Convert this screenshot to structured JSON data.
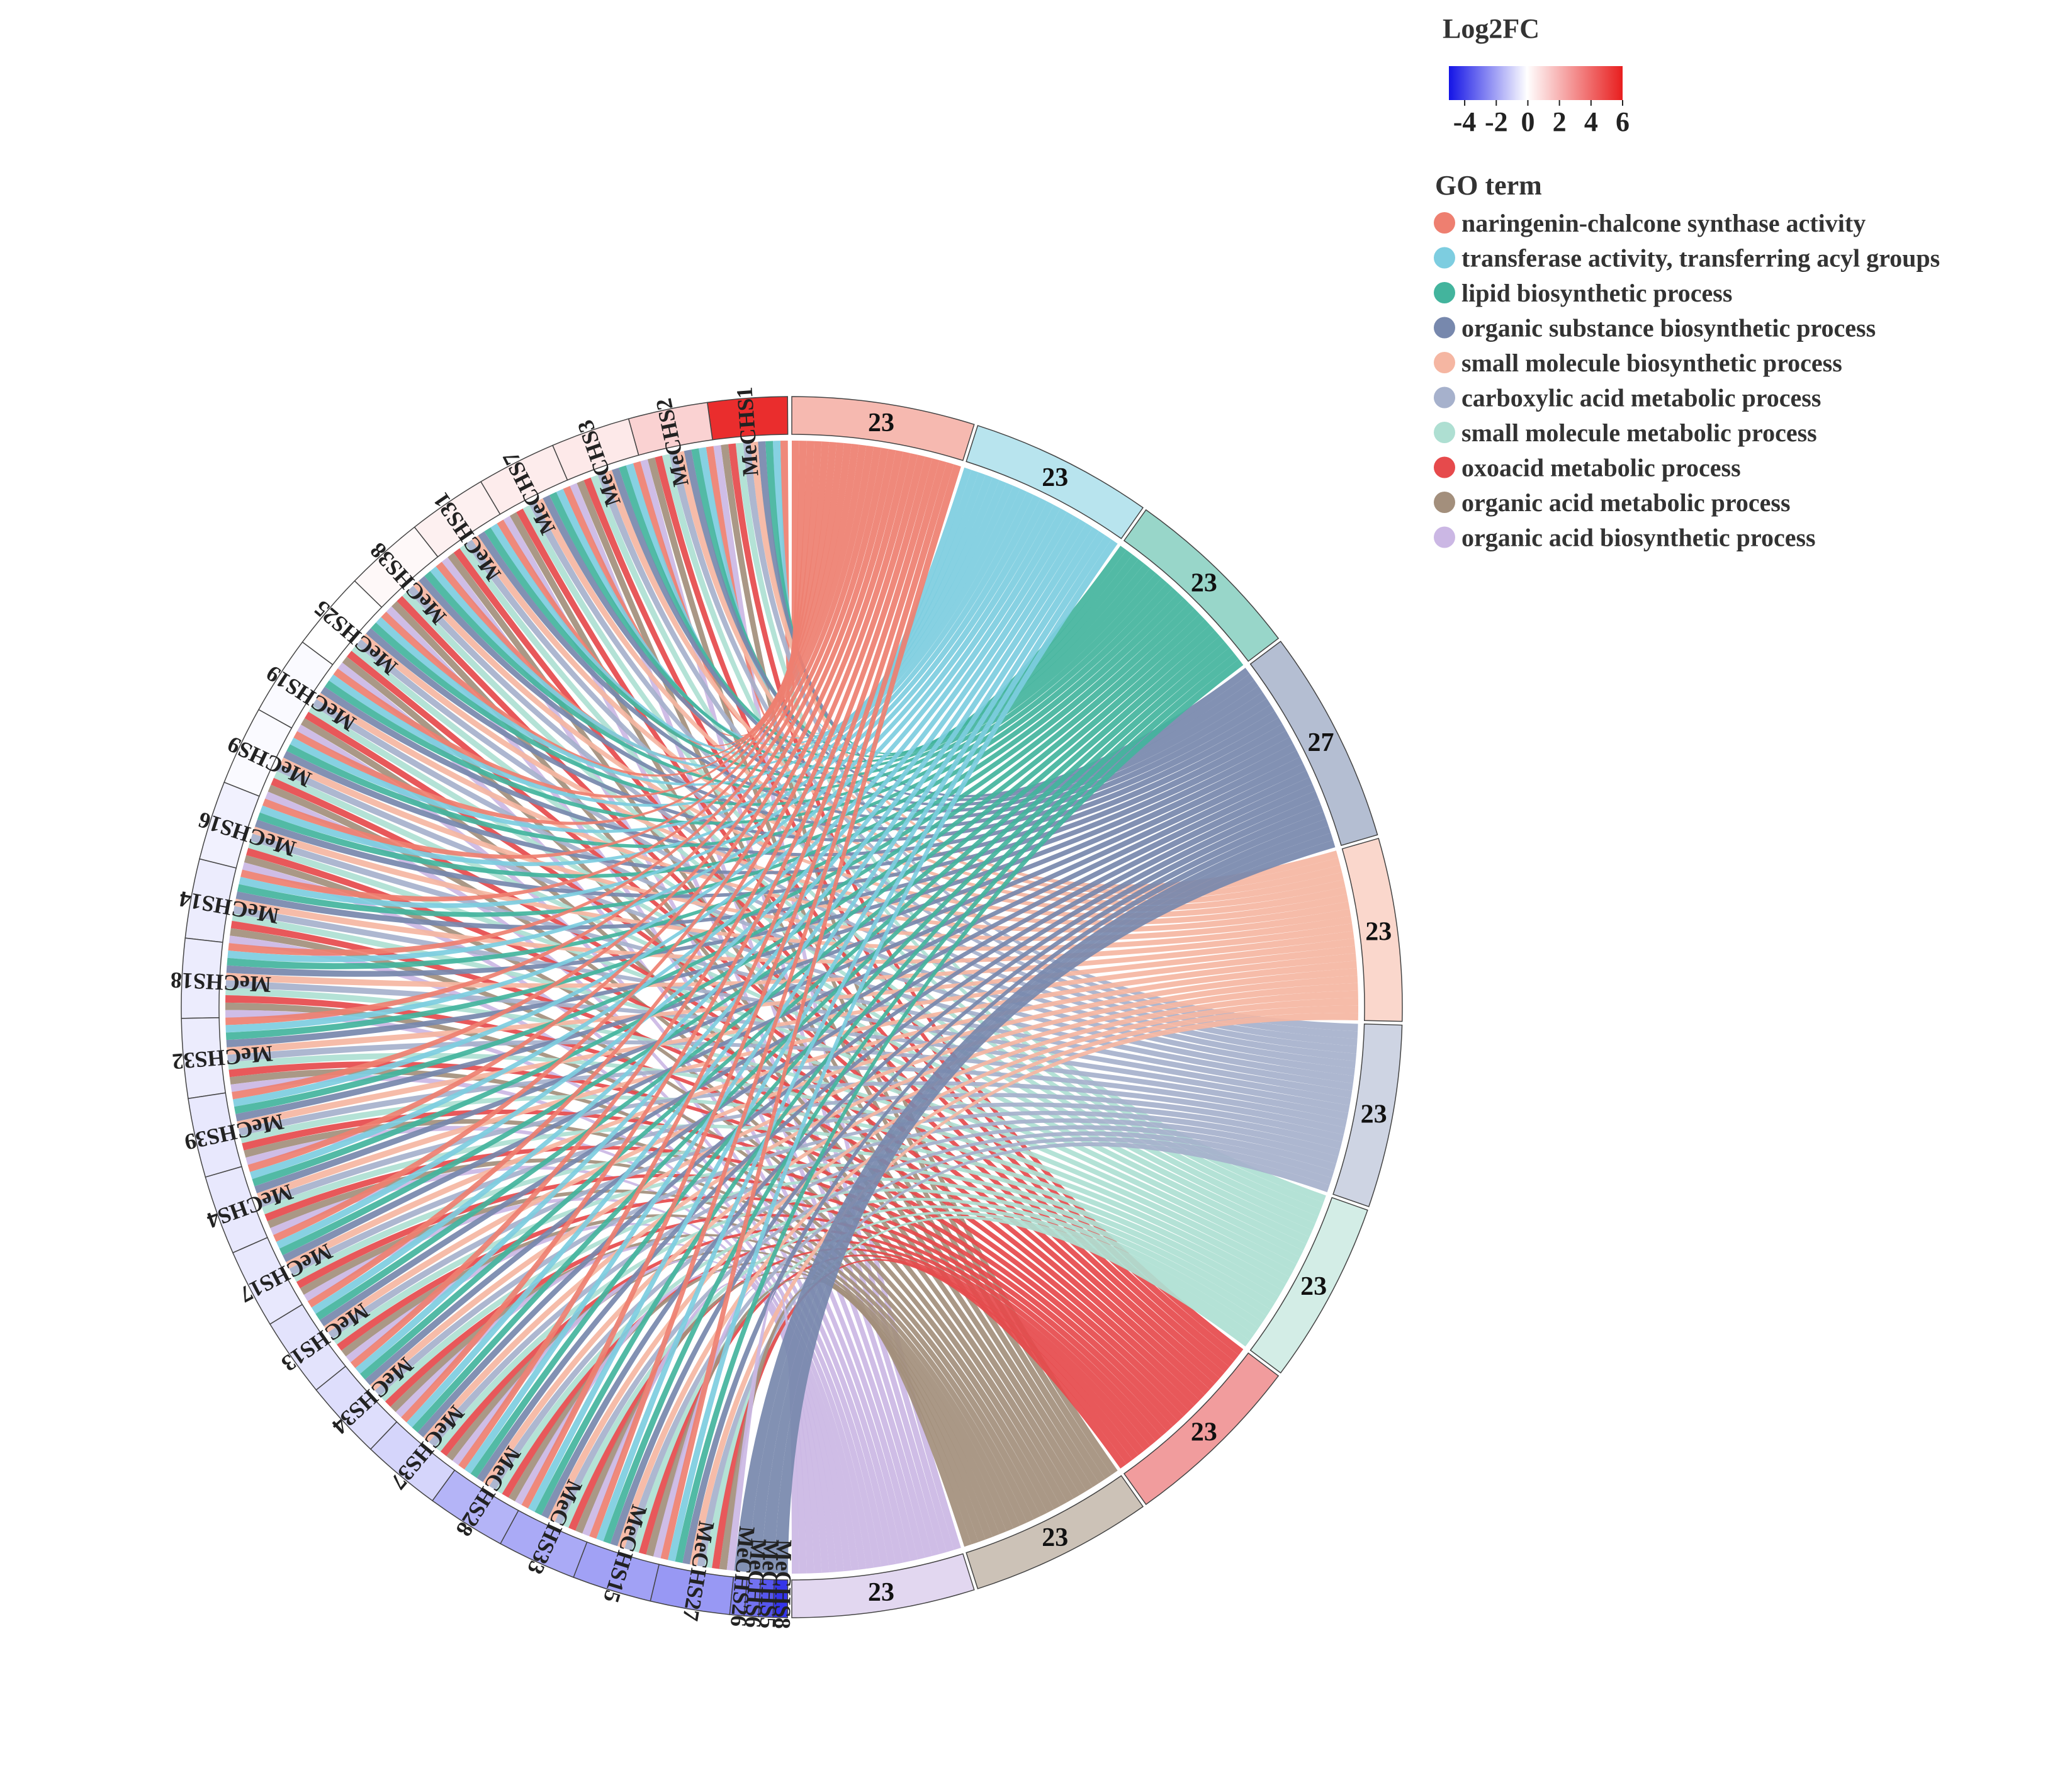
{
  "chart_data": {
    "type": "chord",
    "title": "",
    "genes": [
      {
        "name": "MeCHS1",
        "log2fc": 5.6
      },
      {
        "name": "MeCHS2",
        "log2fc": 1.2
      },
      {
        "name": "MeCHS3",
        "log2fc": 0.6
      },
      {
        "name": "MeCHS7",
        "log2fc": 0.5
      },
      {
        "name": "MeCHS31",
        "log2fc": 0.4
      },
      {
        "name": "MeCHS38",
        "log2fc": 0.2
      },
      {
        "name": "MeCHS25",
        "log2fc": 0.0
      },
      {
        "name": "MeCHS19",
        "log2fc": -0.1
      },
      {
        "name": "MeCHS9",
        "log2fc": -0.1
      },
      {
        "name": "MeCHS16",
        "log2fc": -0.3
      },
      {
        "name": "MeCHS14",
        "log2fc": -0.4
      },
      {
        "name": "MeCHS18",
        "log2fc": -0.4
      },
      {
        "name": "MeCHS32",
        "log2fc": -0.4
      },
      {
        "name": "MeCHS39",
        "log2fc": -0.5
      },
      {
        "name": "MeCHS4",
        "log2fc": -0.5
      },
      {
        "name": "MeCHS17",
        "log2fc": -0.5
      },
      {
        "name": "MeCHS13",
        "log2fc": -0.6
      },
      {
        "name": "MeCHS34",
        "log2fc": -0.7
      },
      {
        "name": "MeCHS37",
        "log2fc": -0.9
      },
      {
        "name": "MeCHS28",
        "log2fc": -1.6
      },
      {
        "name": "MeCHS33",
        "log2fc": -1.8
      },
      {
        "name": "MeCHS15",
        "log2fc": -2.0
      },
      {
        "name": "MeCHS27",
        "log2fc": -2.2
      },
      {
        "name": "MeCHS26",
        "log2fc": -2.6
      },
      {
        "name": "MeCHS6",
        "log2fc": -3.0
      },
      {
        "name": "MeCHS5",
        "log2fc": -3.6
      },
      {
        "name": "MeCHS8",
        "log2fc": -4.3
      }
    ],
    "go_terms": [
      {
        "name": "naringenin-chalcone synthase activity",
        "count": 23,
        "color": "#EE7F70"
      },
      {
        "name": "transferase activity, transferring acyl groups",
        "count": 23,
        "color": "#7DCDE0"
      },
      {
        "name": "lipid biosynthetic process",
        "count": 23,
        "color": "#43B49D"
      },
      {
        "name": "organic substance biosynthetic process",
        "count": 27,
        "color": "#7788AD"
      },
      {
        "name": "small molecule biosynthetic process",
        "count": 23,
        "color": "#F5B6A2"
      },
      {
        "name": "carboxylic acid metabolic process",
        "count": 23,
        "color": "#A6B1CC"
      },
      {
        "name": "small molecule metabolic process",
        "count": 23,
        "color": "#AEDFD2"
      },
      {
        "name": "oxoacid metabolic process",
        "count": 23,
        "color": "#E64A4C"
      },
      {
        "name": "organic acid metabolic process",
        "count": 23,
        "color": "#A38F7C"
      },
      {
        "name": "organic acid biosynthetic process",
        "count": 23,
        "color": "#CBB7E4"
      }
    ],
    "legend": {
      "colorbar_title": "Log2FC",
      "colorbar_ticks": [
        "-4",
        "-2",
        "0",
        "2",
        "4",
        "6"
      ],
      "colorbar_range": [
        -5,
        6
      ],
      "colorbar_colors": [
        "#1414E6",
        "#FFFFFF",
        "#E81E1E"
      ],
      "go_title": "GO term"
    }
  }
}
